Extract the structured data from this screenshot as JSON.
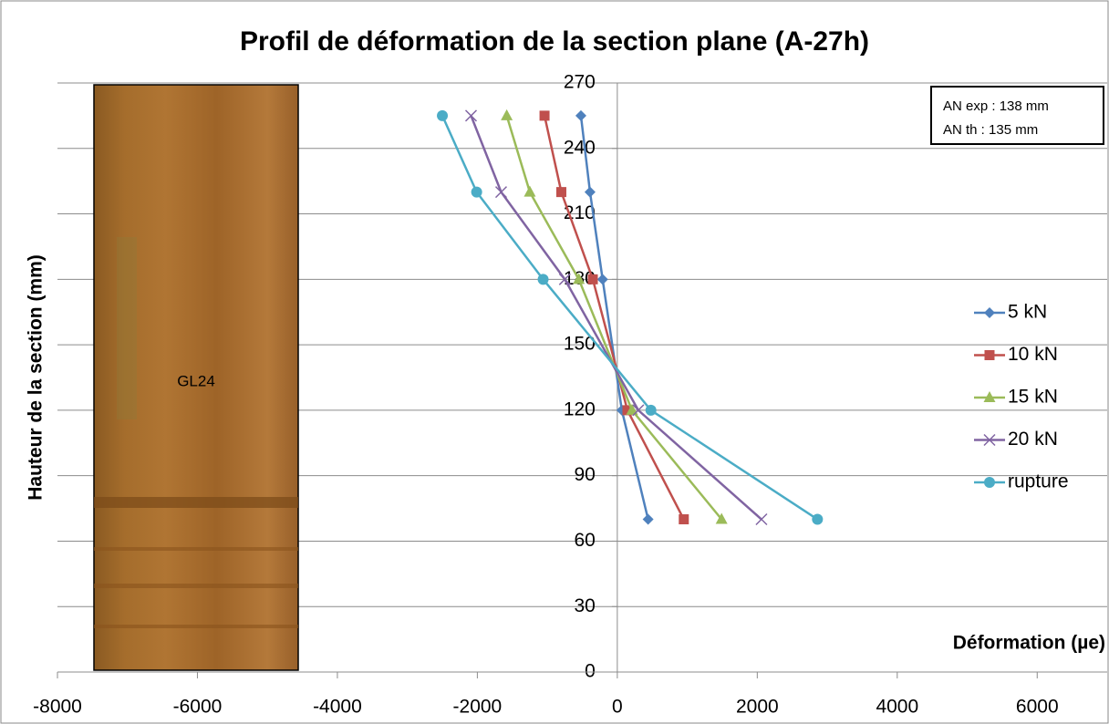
{
  "chart_data": {
    "type": "scatter",
    "title": "Profil de déformation de la section plane (A-27h)",
    "xlabel": "Déformation (µe)",
    "ylabel": "Hauteur de la section (mm)",
    "xlim": [
      -8000,
      7000
    ],
    "xticks": [
      -8000,
      -6000,
      -4000,
      -2000,
      0,
      2000,
      4000,
      6000
    ],
    "ylim": [
      0,
      270
    ],
    "yticks": [
      0,
      30,
      60,
      90,
      120,
      150,
      180,
      210,
      240,
      270
    ],
    "grid": true,
    "legend": "right",
    "annotations": [
      "AN exp : 138 mm",
      "AN th : 135 mm"
    ],
    "image_label": "GL24",
    "series": [
      {
        "name": "5 kN",
        "color": "#4f81bd",
        "marker": "diamond",
        "x": [
          -520,
          -390,
          -210,
          65,
          440
        ],
        "y": [
          255,
          220,
          180,
          120,
          70
        ]
      },
      {
        "name": "10 kN",
        "color": "#c0504d",
        "marker": "square",
        "x": [
          -1040,
          -800,
          -350,
          145,
          950
        ],
        "y": [
          255,
          220,
          180,
          120,
          70
        ]
      },
      {
        "name": "15 kN",
        "color": "#9bbb59",
        "marker": "triangle",
        "x": [
          -1580,
          -1250,
          -550,
          210,
          1490
        ],
        "y": [
          255,
          220,
          180,
          120,
          70
        ]
      },
      {
        "name": "20 kN",
        "color": "#8064a2",
        "marker": "x",
        "x": [
          -2090,
          -1660,
          -750,
          300,
          2060
        ],
        "y": [
          255,
          220,
          180,
          120,
          70
        ]
      },
      {
        "name": "rupture",
        "color": "#4bacc6",
        "marker": "circle",
        "x": [
          -2500,
          -2010,
          -1060,
          480,
          2860
        ],
        "y": [
          255,
          220,
          180,
          120,
          70
        ]
      }
    ]
  }
}
